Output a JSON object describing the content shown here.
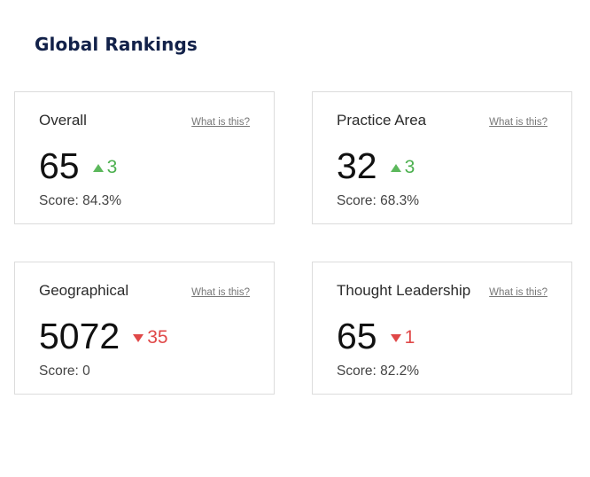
{
  "page": {
    "title": "Global Rankings"
  },
  "colors": {
    "title": "#122149",
    "up": "#4cb04f",
    "down": "#e04848"
  },
  "cards": [
    {
      "title": "Overall",
      "help": "What is this?",
      "rank": "65",
      "change": "3",
      "direction": "up",
      "score": "Score: 84.3%"
    },
    {
      "title": "Practice Area",
      "help": "What is this?",
      "rank": "32",
      "change": "3",
      "direction": "up",
      "score": "Score: 68.3%"
    },
    {
      "title": "Geographical",
      "help": "What is this?",
      "rank": "5072",
      "change": "35",
      "direction": "down",
      "score": "Score: 0"
    },
    {
      "title": "Thought Leadership",
      "help": "What is this?",
      "rank": "65",
      "change": "1",
      "direction": "down",
      "score": "Score: 82.2%"
    }
  ]
}
